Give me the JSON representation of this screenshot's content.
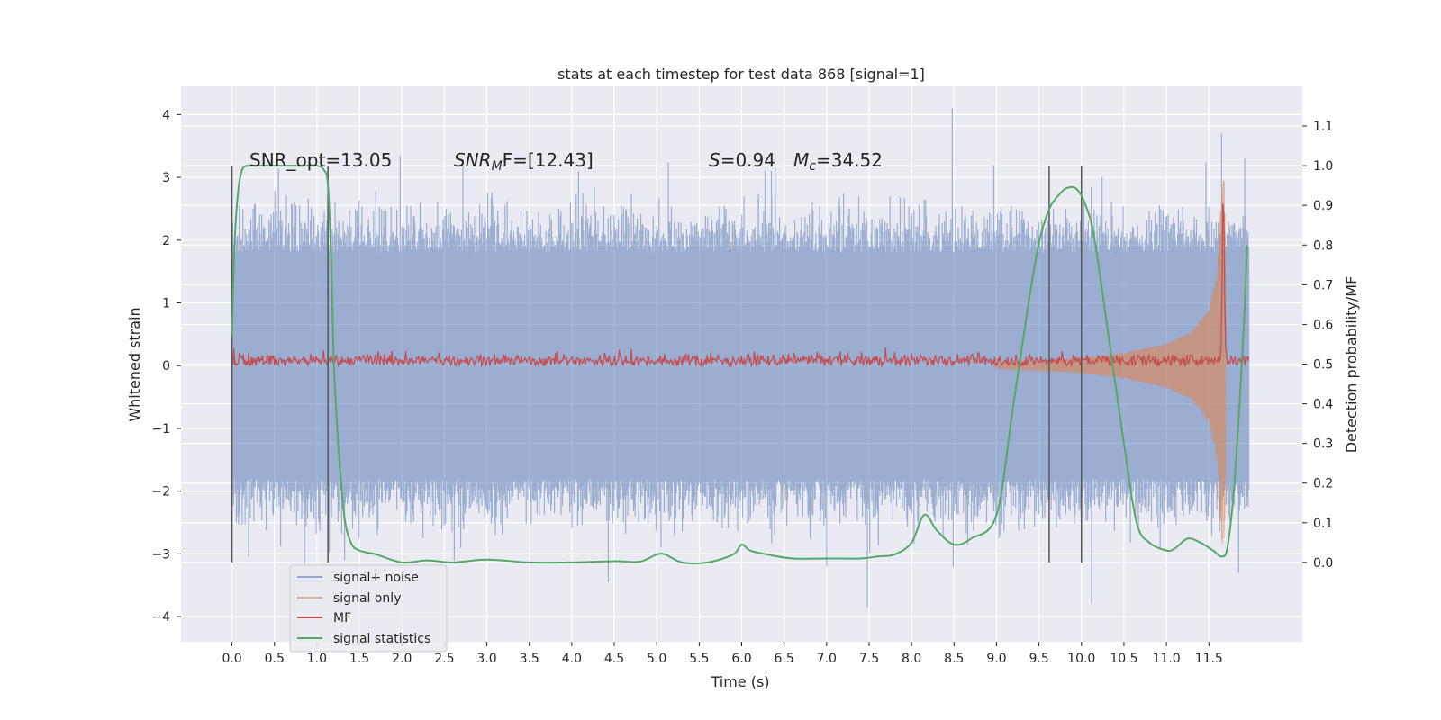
{
  "chart_data": {
    "type": "line",
    "title": "stats at each timestep for test data 868 [signal=1]",
    "xlabel": "Time (s)",
    "ylabel_left": "Whitened strain",
    "ylabel_right": "Detection probability/MF",
    "xlim": [
      -0.6,
      12.6
    ],
    "ylim_left": [
      -4.4,
      4.45
    ],
    "ylim_right": [
      -0.2,
      1.2
    ],
    "xticks": [
      0.0,
      0.5,
      1.0,
      1.5,
      2.0,
      2.5,
      3.0,
      3.5,
      4.0,
      4.5,
      5.0,
      5.5,
      6.0,
      6.5,
      7.0,
      7.5,
      8.0,
      8.5,
      9.0,
      9.5,
      10.0,
      10.5,
      11.0,
      11.5
    ],
    "xtick_labels": [
      "0.0",
      "0.5",
      "1.0",
      "1.5",
      "2.0",
      "2.5",
      "3.0",
      "3.5",
      "4.0",
      "4.5",
      "5.0",
      "5.5",
      "6.0",
      "6.5",
      "7.0",
      "7.5",
      "8.0",
      "8.5",
      "9.0",
      "9.5",
      "10.0",
      "10.5",
      "11.0",
      "11.5"
    ],
    "yticks_left": [
      -4,
      -3,
      -2,
      -1,
      0,
      1,
      2,
      3,
      4
    ],
    "ytick_labels_left": [
      "−4",
      "−3",
      "−2",
      "−1",
      "0",
      "1",
      "2",
      "3",
      "4"
    ],
    "yticks_right": [
      0.0,
      0.1,
      0.2,
      0.3,
      0.4,
      0.5,
      0.6,
      0.7,
      0.8,
      0.9,
      1.0,
      1.1
    ],
    "ytick_labels_right": [
      "0.0",
      "0.1",
      "0.2",
      "0.3",
      "0.4",
      "0.5",
      "0.6",
      "0.7",
      "0.8",
      "0.9",
      "1.0",
      "1.1"
    ],
    "grid": true,
    "legend_position": "lower-left",
    "annotations": {
      "snr_opt": "SNR_opt=13.05",
      "snr_mf_sym": "SNR",
      "snr_mf_sub": "M",
      "snr_mf_val": "F=[12.43]",
      "s_sym": "S",
      "s_val": "=0.94",
      "mc_sym": "M",
      "mc_sub": "c",
      "mc_val": "=34.52"
    },
    "vertical_markers_s": [
      0.0,
      1.13,
      9.62,
      10.0
    ],
    "series": [
      {
        "name": "signal+ noise",
        "color": "#4c72b0",
        "style": "noise band",
        "x_range": [
          0.0,
          11.97
        ],
        "typical_envelope": [
          -1.8,
          1.8
        ],
        "extremes": [
          [
            1.98,
            3.35
          ],
          [
            2.72,
            3.2
          ],
          [
            4.08,
            3.1
          ],
          [
            6.35,
            3.1
          ],
          [
            8.48,
            4.1
          ],
          [
            11.65,
            3.7
          ],
          [
            11.92,
            3.3
          ],
          [
            4.43,
            -3.45
          ],
          [
            7.48,
            -3.85
          ],
          [
            10.12,
            -3.8
          ],
          [
            11.85,
            -3.3
          ],
          [
            7.0,
            -3.2
          ],
          [
            5.05,
            -2.9
          ],
          [
            3.1,
            -2.7
          ]
        ]
      },
      {
        "name": "signal only",
        "color": "#dd8452",
        "style": "chirp",
        "x": [
          9.0,
          9.5,
          10.0,
          10.5,
          11.0,
          11.3,
          11.5,
          11.6,
          11.65,
          11.68,
          11.72
        ],
        "amplitude": [
          0.05,
          0.08,
          0.12,
          0.2,
          0.35,
          0.55,
          0.9,
          1.5,
          2.8,
          3.0,
          0.0
        ]
      },
      {
        "name": "MF",
        "color": "#c44e52",
        "style": "noisy line",
        "baseline": 0.08,
        "typical_range": [
          0.0,
          0.25
        ],
        "peak": [
          11.67,
          2.85
        ]
      },
      {
        "name": "signal statistics",
        "color": "#55a868",
        "axis": "right",
        "x": [
          0.0,
          0.03,
          0.07,
          0.12,
          0.2,
          0.35,
          0.6,
          0.9,
          1.0,
          1.08,
          1.13,
          1.17,
          1.2,
          1.25,
          1.32,
          1.4,
          1.5,
          1.7,
          2.0,
          2.3,
          2.6,
          3.0,
          3.5,
          4.0,
          4.5,
          4.8,
          5.0,
          5.1,
          5.3,
          5.6,
          5.9,
          6.0,
          6.1,
          6.3,
          6.6,
          7.0,
          7.4,
          7.6,
          7.8,
          8.0,
          8.15,
          8.3,
          8.5,
          8.7,
          9.0,
          9.2,
          9.45,
          9.6,
          9.75,
          9.85,
          9.95,
          10.05,
          10.15,
          10.3,
          10.5,
          10.65,
          10.8,
          11.0,
          11.1,
          11.25,
          11.4,
          11.55,
          11.65,
          11.72,
          11.8,
          11.9,
          11.95
        ],
        "y": [
          0.57,
          0.8,
          0.93,
          0.99,
          1.0,
          1.0,
          1.0,
          1.0,
          1.0,
          0.99,
          0.95,
          0.75,
          0.5,
          0.3,
          0.12,
          0.05,
          0.03,
          0.02,
          0.0,
          0.005,
          0.0,
          0.007,
          0.0,
          0.0,
          0.003,
          0.002,
          0.02,
          0.02,
          0.0,
          0.0,
          0.02,
          0.045,
          0.03,
          0.02,
          0.01,
          0.01,
          0.01,
          0.015,
          0.02,
          0.05,
          0.12,
          0.08,
          0.045,
          0.06,
          0.12,
          0.4,
          0.75,
          0.88,
          0.93,
          0.945,
          0.94,
          0.9,
          0.82,
          0.6,
          0.3,
          0.1,
          0.05,
          0.03,
          0.035,
          0.06,
          0.05,
          0.03,
          0.015,
          0.04,
          0.2,
          0.55,
          0.8
        ]
      }
    ],
    "legend": [
      "signal+ noise",
      "signal only",
      "MF",
      "signal statistics"
    ]
  }
}
